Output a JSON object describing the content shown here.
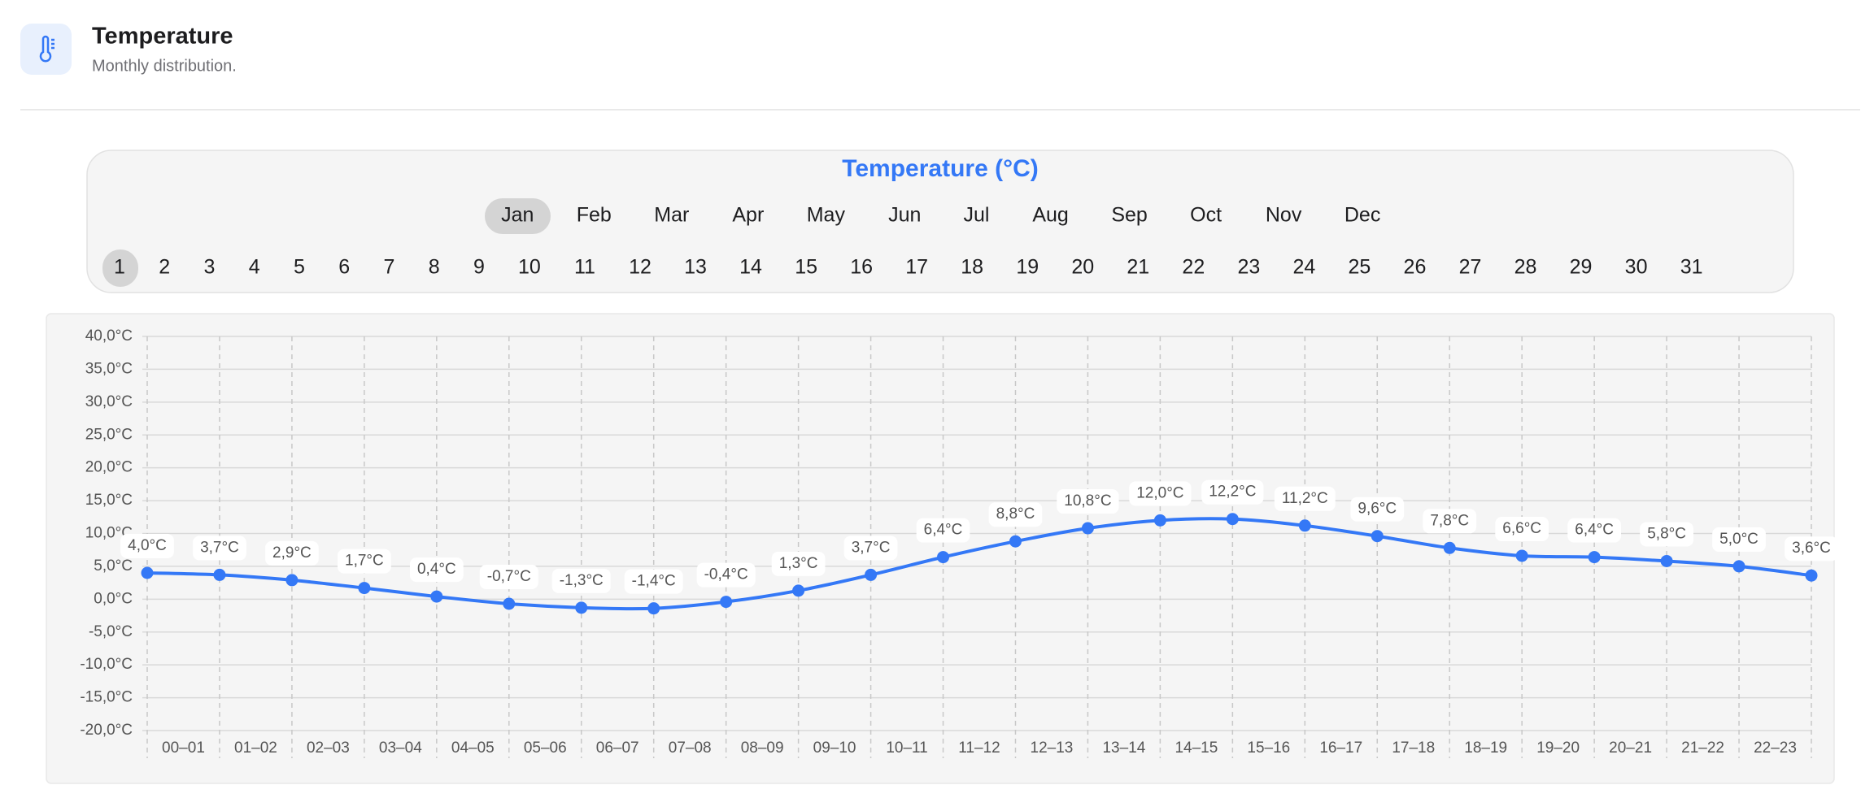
{
  "header": {
    "title": "Temperature",
    "subtitle": "Monthly distribution."
  },
  "selector": {
    "title": "Temperature (°C)",
    "months": [
      "Jan",
      "Feb",
      "Mar",
      "Apr",
      "May",
      "Jun",
      "Jul",
      "Aug",
      "Sep",
      "Oct",
      "Nov",
      "Dec"
    ],
    "days": [
      1,
      2,
      3,
      4,
      5,
      6,
      7,
      8,
      9,
      10,
      11,
      12,
      13,
      14,
      15,
      16,
      17,
      18,
      19,
      20,
      21,
      22,
      23,
      24,
      25,
      26,
      27,
      28,
      29,
      30,
      31
    ]
  },
  "chart_data": {
    "type": "line",
    "categories": [
      "00–01",
      "01–02",
      "02–03",
      "03–04",
      "04–05",
      "05–06",
      "06–07",
      "07–08",
      "08–09",
      "09–10",
      "10–11",
      "11–12",
      "12–13",
      "13–14",
      "14–15",
      "15–16",
      "16–17",
      "17–18",
      "18–19",
      "19–20",
      "20–21",
      "21–22",
      "22–23",
      null
    ],
    "series": [
      {
        "color": "#3478f6",
        "values": [
          4.0,
          3.7,
          2.9,
          1.7,
          0.4,
          -0.7,
          -1.3,
          -1.4,
          -0.4,
          1.3,
          3.7,
          6.4,
          8.8,
          10.8,
          12.0,
          12.2,
          11.2,
          9.6,
          7.8,
          6.6,
          6.4,
          5.8,
          5.0,
          3.6
        ],
        "value_labels": [
          "4,0°C",
          "3,7°C",
          "2,9°C",
          "1,7°C",
          "0,4°C",
          "-0,7°C",
          "-1,3°C",
          "-1,4°C",
          "-0,4°C",
          "1,3°C",
          "3,7°C",
          "6,4°C",
          "8,8°C",
          "10,8°C",
          "12,0°C",
          "12,2°C",
          "11,2°C",
          "9,6°C",
          "7,8°C",
          "6,6°C",
          "6,4°C",
          "5,8°C",
          "5,0°C",
          "3,6°C"
        ]
      }
    ],
    "ylim": [
      -20,
      40
    ],
    "yticks": [
      {
        "value": -20,
        "label": "-20,0°C"
      },
      {
        "value": -15,
        "label": "-15,0°C"
      },
      {
        "value": -10,
        "label": "-10,0°C"
      },
      {
        "value": -5,
        "label": "-5,0°C"
      },
      {
        "value": 0,
        "label": "0,0°C"
      },
      {
        "value": 5,
        "label": "5,0°C"
      },
      {
        "value": 10,
        "label": "10,0°C"
      },
      {
        "value": 15,
        "label": "15,0°C"
      },
      {
        "value": 20,
        "label": "20,0°C"
      },
      {
        "value": 25,
        "label": "25,0°C"
      },
      {
        "value": 30,
        "label": "30,0°C"
      },
      {
        "value": 35,
        "label": "35,0°C"
      },
      {
        "value": 40,
        "label": "40,0°C"
      }
    ],
    "grid": true
  }
}
